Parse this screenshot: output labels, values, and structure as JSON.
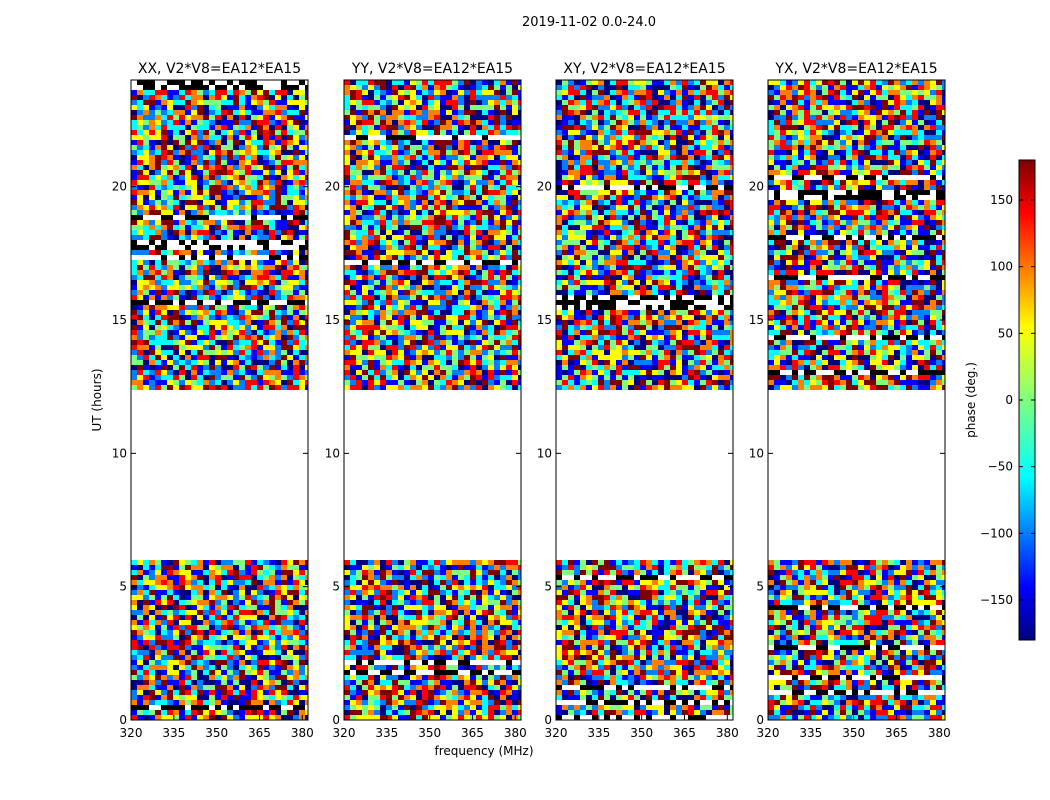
{
  "chart_data": {
    "type": "heatmap",
    "suptitle": "2019-11-02 0.0-24.0",
    "xlabel": "frequency (MHz)",
    "ylabel": "UT (hours)",
    "xlim": [
      320,
      382
    ],
    "ylim": [
      0,
      24
    ],
    "xticks": [
      320,
      335,
      350,
      365,
      380
    ],
    "yticks": [
      0,
      5,
      10,
      15,
      20
    ],
    "flagged_gap_hours": [
      6.0,
      12.3
    ],
    "colorbar": {
      "label": "phase (deg.)",
      "range": [
        -180,
        180
      ],
      "ticks": [
        -150,
        -100,
        -50,
        0,
        50,
        100,
        150
      ],
      "colormap": "jet",
      "colors": [
        "#00007f",
        "#0000ff",
        "#007fff",
        "#00ffff",
        "#7fff7f",
        "#ffff00",
        "#ff7f00",
        "#ff0000",
        "#7f0000"
      ]
    },
    "panels": [
      {
        "id": "xx",
        "title": "XX, V2*V8=EA12*EA15"
      },
      {
        "id": "yy",
        "title": "YY, V2*V8=EA12*EA15"
      },
      {
        "id": "xy",
        "title": "XY, V2*V8=EA12*EA15"
      },
      {
        "id": "yx",
        "title": "YX, V2*V8=EA12*EA15"
      }
    ]
  }
}
